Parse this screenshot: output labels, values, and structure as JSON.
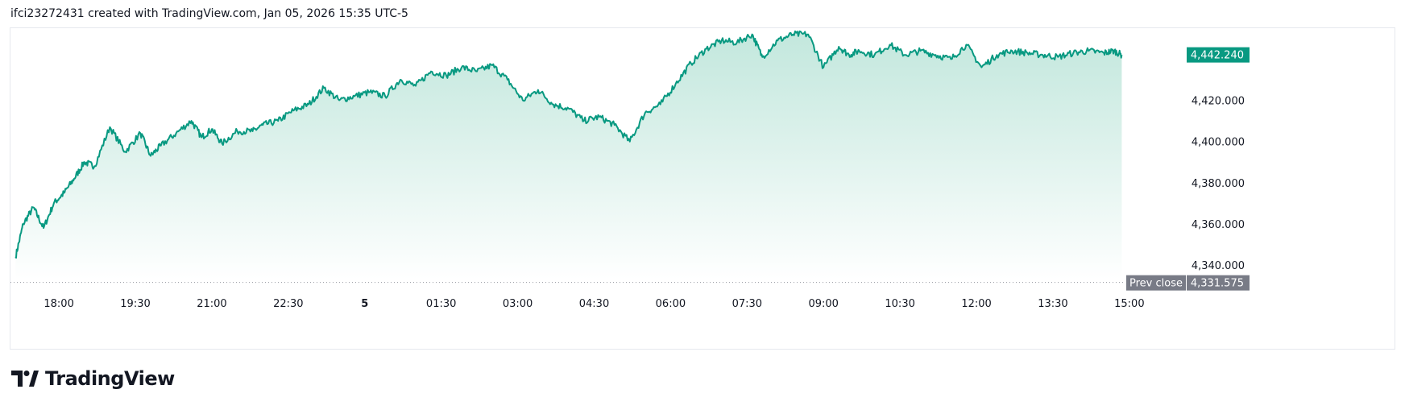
{
  "header": {
    "text": "ifci23272431 created with TradingView.com, Jan 05, 2026 15:35 UTC-5"
  },
  "brand": {
    "name": "TradingView"
  },
  "colors": {
    "line": "#089981",
    "fill_top": "#bfe6db",
    "fill_bottom": "#ffffff",
    "price_badge": "#089981",
    "prev_badge": "#787b86"
  },
  "last_price": {
    "label": "4,442.240",
    "value": 4442.24
  },
  "prev_close": {
    "label": "Prev close",
    "value_label": "4,331.575",
    "value": 4331.575
  },
  "chart_data": {
    "type": "area",
    "xaxis_ticks": [
      "18:00",
      "19:30",
      "21:00",
      "22:30",
      "5",
      "01:30",
      "03:00",
      "04:30",
      "06:00",
      "07:30",
      "09:00",
      "10:30",
      "12:00",
      "13:30",
      "15:00"
    ],
    "yaxis_ticks": [
      {
        "label": "4,420.000",
        "value": 4420
      },
      {
        "label": "4,400.000",
        "value": 4400
      },
      {
        "label": "4,380.000",
        "value": 4380
      },
      {
        "label": "4,360.000",
        "value": 4360
      },
      {
        "label": "4,340.000",
        "value": 4340
      }
    ],
    "ylim": [
      4333,
      4455
    ],
    "xlim_hours": [
      -6.95,
      15.65
    ],
    "grid": false,
    "series": [
      {
        "x_hours": [
          -6.85,
          -6.7,
          -6.5,
          -6.3,
          -6.1,
          -5.9,
          -5.7,
          -5.5,
          -5.3,
          -5.0,
          -4.7,
          -4.4,
          -4.2,
          -4.0,
          -3.7,
          -3.4,
          -3.2,
          -3.0,
          -2.8,
          -2.5,
          -2.2,
          -2.0,
          -1.7,
          -1.4,
          -1.1,
          -0.8,
          -0.5,
          -0.2,
          0.1,
          0.4,
          0.7,
          1.0,
          1.3,
          1.6,
          1.9,
          2.2,
          2.5,
          2.8,
          3.1,
          3.4,
          3.7,
          4.0,
          4.3,
          4.6,
          4.9,
          5.2,
          5.5,
          5.8,
          6.1,
          6.4,
          6.7,
          7.0,
          7.3,
          7.6,
          7.8,
          8.1,
          8.4,
          8.7,
          9.0,
          9.3,
          9.5,
          9.7,
          10.0,
          10.3,
          10.6,
          10.9,
          11.2,
          11.5,
          11.8,
          12.1,
          12.4,
          12.7,
          13.0,
          13.3,
          13.6,
          13.9,
          14.2,
          14.5,
          14.7,
          14.85
        ],
        "values": [
          4344,
          4360,
          4368,
          4358,
          4370,
          4375,
          4382,
          4390,
          4388,
          4407,
          4395,
          4404,
          4393,
          4398,
          4404,
          4410,
          4402,
          4406,
          4399,
          4405,
          4405,
          4408,
          4410,
          4415,
          4418,
          4426,
          4420,
          4422,
          4424,
          4422,
          4430,
          4427,
          4434,
          4432,
          4436,
          4434,
          4437,
          4430,
          4420,
          4425,
          4418,
          4416,
          4410,
          4412,
          4408,
          4400,
          4414,
          4418,
          4428,
          4438,
          4445,
          4449,
          4448,
          4452,
          4441,
          4449,
          4452,
          4452,
          4436,
          4446,
          4442,
          4444,
          4442,
          4447,
          4442,
          4444,
          4442,
          4440,
          4447,
          4436,
          4442,
          4444,
          4443,
          4442,
          4441,
          4443,
          4444,
          4443,
          4444,
          4442
        ]
      }
    ]
  }
}
